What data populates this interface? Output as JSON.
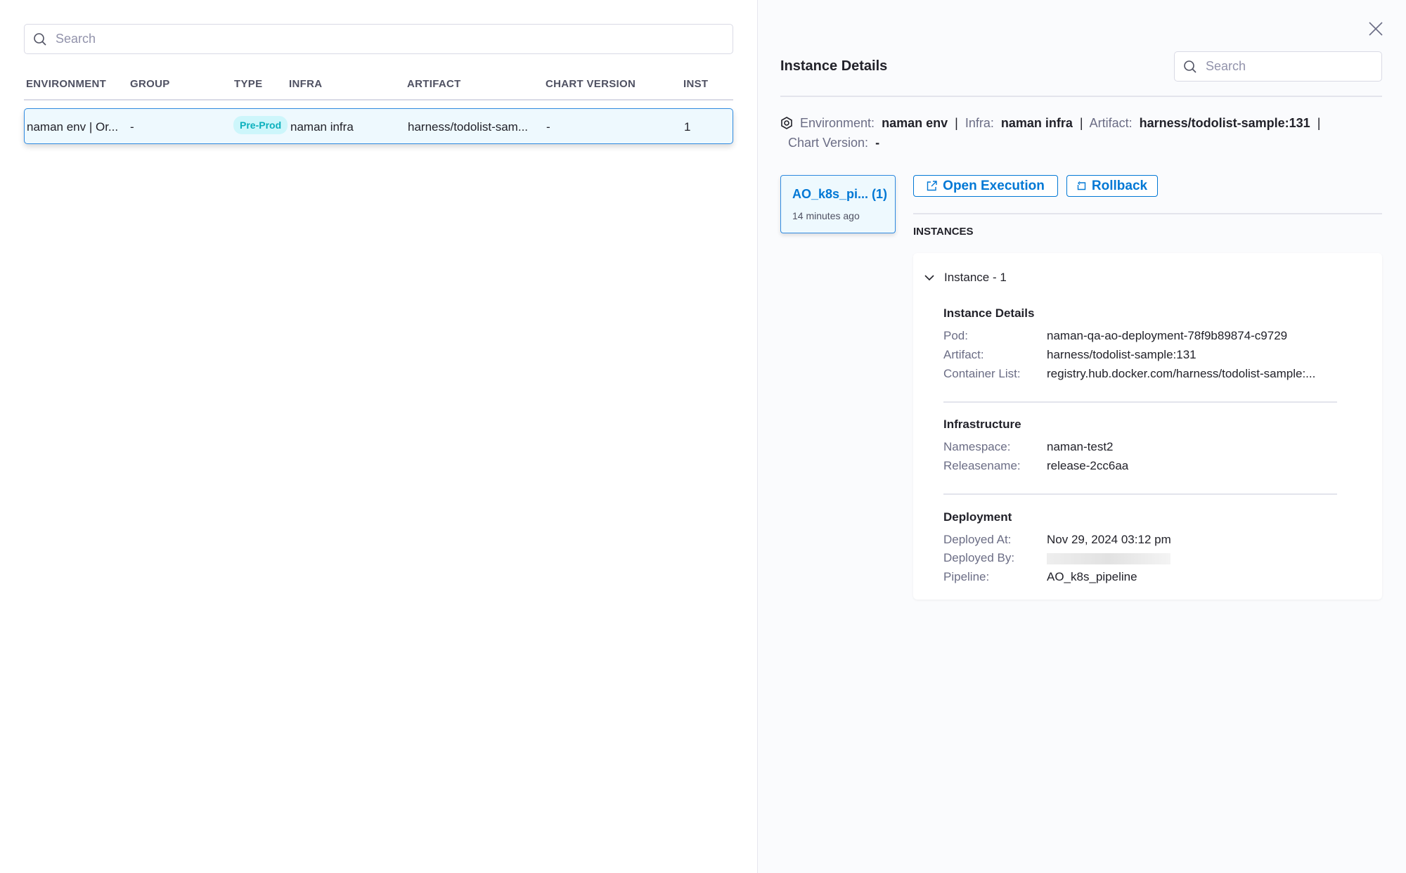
{
  "left": {
    "search_placeholder": "Search",
    "columns": [
      "ENVIRONMENT",
      "GROUP",
      "TYPE",
      "INFRA",
      "ARTIFACT",
      "CHART VERSION",
      "INST"
    ],
    "rows": [
      {
        "environment": "naman env | Or...",
        "group": "-",
        "type": "Pre-Prod",
        "infra": "naman infra",
        "artifact": "harness/todolist-sam...",
        "chart_version": "-",
        "instances": "1"
      }
    ]
  },
  "right": {
    "title": "Instance Details",
    "search_placeholder": "Search",
    "summary": {
      "env_label": "Environment:",
      "env": "naman env",
      "infra_label": "Infra:",
      "infra": "naman infra",
      "artifact_label": "Artifact:",
      "artifact": "harness/todolist-sample:131",
      "chart_label": "Chart Version:",
      "chart": "-"
    },
    "pipeline_card": {
      "name": "AO_k8s_pi... (1)",
      "time": "14 minutes ago"
    },
    "open_execution": "Open Execution",
    "rollback": "Rollback",
    "instances_heading": "INSTANCES",
    "instance": {
      "title": "Instance - 1",
      "details_heading": "Instance Details",
      "pod_label": "Pod:",
      "pod": "naman-qa-ao-deployment-78f9b89874-c9729",
      "artifact_label": "Artifact:",
      "artifact": "harness/todolist-sample:131",
      "container_label": "Container List:",
      "container": "registry.hub.docker.com/harness/todolist-sample:...",
      "infra_heading": "Infrastructure",
      "namespace_label": "Namespace:",
      "namespace": "naman-test2",
      "release_label": "Releasename:",
      "release": "release-2cc6aa",
      "deploy_heading": "Deployment",
      "deployed_at_label": "Deployed At:",
      "deployed_at": "Nov 29, 2024 03:12 pm",
      "deployed_by_label": "Deployed By:",
      "pipeline_label": "Pipeline:",
      "pipeline": "AO_k8s_pipeline"
    }
  },
  "colors": {
    "accent": "#0278d5",
    "badge_bg": "#cdf6fb",
    "badge_text": "#0ab0bd",
    "row_selected": "#eef9fe"
  }
}
